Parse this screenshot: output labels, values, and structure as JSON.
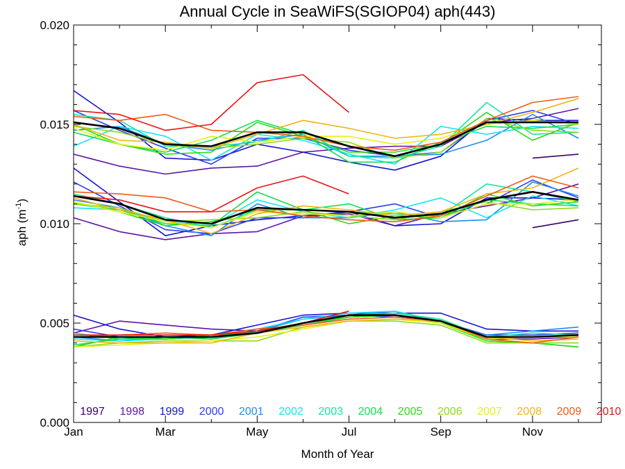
{
  "chart_data": {
    "type": "line",
    "title": "Annual Cycle in SeaWiFS(SGIOP04) aph(443)",
    "xlabel": "Month of Year",
    "ylabel": "aph (m",
    "ylabel_exponent": "-1",
    "ylabel_close": ")",
    "xlim": [
      1,
      12.5
    ],
    "ylim": [
      0.0,
      0.02
    ],
    "yticks": [
      0.0,
      0.005,
      0.01,
      0.015,
      0.02
    ],
    "ytick_labels": [
      "0.000",
      "0.005",
      "0.010",
      "0.015",
      "0.020"
    ],
    "xticks": [
      1,
      3,
      5,
      7,
      9,
      11
    ],
    "xtick_labels": [
      "Jan",
      "Mar",
      "May",
      "Jul",
      "Sep",
      "Nov"
    ],
    "grid": false,
    "legend": "bottom",
    "x": [
      1,
      2,
      3,
      4,
      5,
      6,
      7,
      8,
      9,
      10,
      11,
      12
    ],
    "series": [
      {
        "name": "1997",
        "color": "#3c0060",
        "upper": [
          null,
          null,
          null,
          null,
          null,
          null,
          null,
          null,
          null,
          null,
          0.0133,
          0.0135
        ],
        "middle": [
          null,
          null,
          null,
          null,
          null,
          null,
          null,
          null,
          null,
          null,
          0.0098,
          0.0102
        ],
        "lower": [
          null,
          null,
          null,
          null,
          null,
          null,
          null,
          null,
          null,
          null,
          null,
          null
        ]
      },
      {
        "name": "1998",
        "color": "#5a14a6",
        "upper": [
          0.0135,
          0.0129,
          0.0125,
          0.0128,
          0.0129,
          0.0136,
          0.0138,
          0.0139,
          0.0139,
          0.0151,
          0.0153,
          0.0158
        ],
        "middle": [
          0.0103,
          0.0096,
          0.0092,
          0.0095,
          0.0096,
          0.0104,
          0.0105,
          0.0099,
          0.0105,
          0.0109,
          0.0113,
          0.012
        ],
        "lower": [
          0.0045,
          0.0051,
          0.0049,
          0.0047,
          0.0046,
          0.0049,
          0.0053,
          0.0054,
          0.005,
          0.0042,
          0.0042,
          0.0043
        ]
      },
      {
        "name": "1999",
        "color": "#1414d0",
        "upper": [
          0.0167,
          0.0151,
          0.0133,
          0.0132,
          0.014,
          0.0136,
          0.0131,
          0.0127,
          0.0134,
          0.0153,
          0.0152,
          0.0152
        ],
        "middle": [
          0.0128,
          0.0111,
          0.0094,
          0.0099,
          0.0102,
          0.0104,
          0.0106,
          0.0099,
          0.01,
          0.0113,
          0.0113,
          0.0112
        ],
        "lower": [
          0.0054,
          0.0047,
          0.0043,
          0.0044,
          0.0049,
          0.0054,
          0.0055,
          0.0055,
          0.0055,
          0.0047,
          0.0046,
          0.0046
        ]
      },
      {
        "name": "2000",
        "color": "#2a3cf0",
        "upper": [
          0.0157,
          0.0147,
          0.0138,
          0.013,
          0.0143,
          0.0143,
          0.0137,
          0.0134,
          0.0136,
          0.0152,
          0.0157,
          0.015
        ],
        "middle": [
          0.0121,
          0.0109,
          0.0097,
          0.0095,
          0.0103,
          0.0103,
          0.0106,
          0.011,
          0.0103,
          0.011,
          0.0122,
          0.0113
        ],
        "lower": [
          0.0047,
          0.0043,
          0.0042,
          0.0043,
          0.0046,
          0.0053,
          0.0054,
          0.0053,
          0.0051,
          0.0044,
          0.0044,
          0.0045
        ]
      },
      {
        "name": "2001",
        "color": "#1e8cf0",
        "upper": [
          0.0147,
          0.0149,
          0.014,
          0.0137,
          0.0142,
          0.0145,
          0.0134,
          0.0134,
          0.0135,
          0.0142,
          0.0155,
          0.0143
        ],
        "middle": [
          0.0112,
          0.0108,
          0.0099,
          0.0094,
          0.011,
          0.0103,
          0.0103,
          0.0106,
          0.0101,
          0.0102,
          0.0121,
          0.0114
        ],
        "lower": [
          0.0043,
          0.0041,
          0.0043,
          0.0042,
          0.0046,
          0.0052,
          0.0054,
          0.0056,
          0.005,
          0.0044,
          0.0046,
          0.0048
        ]
      },
      {
        "name": "2002",
        "color": "#14e6f0",
        "upper": [
          0.0139,
          0.0149,
          0.0144,
          0.0132,
          0.0145,
          0.0142,
          0.0135,
          0.013,
          0.0149,
          0.0145,
          0.0149,
          0.0148
        ],
        "middle": [
          0.0108,
          0.0107,
          0.0101,
          0.0099,
          0.0112,
          0.0106,
          0.0103,
          0.0107,
          0.0113,
          0.0103,
          0.0114,
          0.0109
        ],
        "lower": [
          0.0042,
          0.0041,
          0.0042,
          0.0044,
          0.0047,
          0.0052,
          0.0055,
          0.0056,
          0.0051,
          0.0043,
          0.0043,
          0.0044
        ]
      },
      {
        "name": "2003",
        "color": "#14e6a0",
        "upper": [
          0.0155,
          0.0152,
          0.0139,
          0.0139,
          0.0141,
          0.0147,
          0.0134,
          0.0133,
          0.0139,
          0.0161,
          0.0145,
          0.0146
        ],
        "middle": [
          0.0115,
          0.011,
          0.0103,
          0.0098,
          0.0107,
          0.0107,
          0.0106,
          0.0105,
          0.0104,
          0.012,
          0.0116,
          0.0111
        ],
        "lower": [
          0.0045,
          0.0042,
          0.0042,
          0.0043,
          0.0046,
          0.005,
          0.0054,
          0.0055,
          0.0052,
          0.0043,
          0.0045,
          0.0044
        ]
      },
      {
        "name": "2004",
        "color": "#14dc50",
        "upper": [
          0.0146,
          0.014,
          0.0136,
          0.0142,
          0.0152,
          0.0145,
          0.0131,
          0.0131,
          0.0141,
          0.0149,
          0.0148,
          0.015
        ],
        "middle": [
          0.011,
          0.0107,
          0.01,
          0.0099,
          0.0116,
          0.0107,
          0.011,
          0.0102,
          0.0103,
          0.0112,
          0.011,
          0.0109
        ],
        "lower": [
          0.0039,
          0.0042,
          0.0043,
          0.0042,
          0.0045,
          0.0049,
          0.0053,
          0.0054,
          0.0051,
          0.0041,
          0.004,
          0.0038
        ]
      },
      {
        "name": "2005",
        "color": "#28dc14",
        "upper": [
          0.015,
          0.014,
          0.0135,
          0.0136,
          0.0151,
          0.0144,
          0.0136,
          0.0136,
          0.014,
          0.0156,
          0.0142,
          0.0151
        ],
        "middle": [
          0.0111,
          0.0106,
          0.0099,
          0.0101,
          0.0107,
          0.0107,
          0.01,
          0.0104,
          0.0103,
          0.0115,
          0.0109,
          0.0111
        ],
        "lower": [
          0.0038,
          0.0043,
          0.0042,
          0.0044,
          0.0045,
          0.005,
          0.0053,
          0.0054,
          0.005,
          0.0041,
          0.004,
          0.0038
        ]
      },
      {
        "name": "2006",
        "color": "#8cdc14",
        "upper": [
          0.0149,
          0.0146,
          0.014,
          0.0138,
          0.014,
          0.0143,
          0.0141,
          0.0133,
          0.0136,
          0.0153,
          0.0147,
          0.0146
        ],
        "middle": [
          0.011,
          0.0108,
          0.0101,
          0.0102,
          0.0103,
          0.0106,
          0.0104,
          0.0102,
          0.0106,
          0.0111,
          0.0107,
          0.0108
        ],
        "lower": [
          0.0038,
          0.004,
          0.0041,
          0.0041,
          0.0041,
          0.0048,
          0.0051,
          0.0051,
          0.0049,
          0.004,
          0.004,
          0.004
        ]
      },
      {
        "name": "2007",
        "color": "#e6f014",
        "upper": [
          0.0148,
          0.014,
          0.0137,
          0.0144,
          0.0141,
          0.0144,
          0.0144,
          0.014,
          0.0143,
          0.015,
          0.0152,
          0.015
        ],
        "middle": [
          0.0111,
          0.0106,
          0.0101,
          0.0098,
          0.0106,
          0.0105,
          0.0104,
          0.0106,
          0.0103,
          0.011,
          0.011,
          0.0112
        ],
        "lower": [
          0.0038,
          0.0039,
          0.004,
          0.0041,
          0.0043,
          0.0047,
          0.0051,
          0.0052,
          0.005,
          0.0042,
          0.0043,
          0.0043
        ]
      },
      {
        "name": "2008",
        "color": "#f0b414",
        "upper": [
          0.015,
          0.0142,
          0.0141,
          0.0138,
          0.0145,
          0.0152,
          0.0148,
          0.0143,
          0.0145,
          0.015,
          0.0156,
          0.0163
        ],
        "middle": [
          0.0113,
          0.0107,
          0.0102,
          0.0095,
          0.0105,
          0.0109,
          0.0107,
          0.0104,
          0.0106,
          0.0115,
          0.0118,
          0.0128
        ],
        "lower": [
          0.0041,
          0.004,
          0.004,
          0.004,
          0.0045,
          0.0048,
          0.0051,
          0.0052,
          0.0051,
          0.0043,
          0.0041,
          0.0042
        ]
      },
      {
        "name": "2009",
        "color": "#f05a14",
        "upper": [
          0.0154,
          0.0152,
          0.0155,
          0.0147,
          0.0146,
          0.0144,
          0.0139,
          0.0137,
          0.0141,
          0.0152,
          0.0161,
          0.0164
        ],
        "middle": [
          0.0116,
          0.0115,
          0.0113,
          0.0106,
          0.0107,
          0.0104,
          0.0102,
          0.0101,
          0.0104,
          0.0114,
          0.0124,
          0.0118
        ],
        "lower": [
          0.0043,
          0.0044,
          0.0045,
          0.0044,
          0.0047,
          0.0049,
          0.0052,
          0.0053,
          0.0051,
          0.0042,
          0.004,
          0.0043
        ]
      },
      {
        "name": "2010",
        "color": "#e61414",
        "upper": [
          0.0157,
          0.0155,
          0.0147,
          0.015,
          0.0171,
          0.0175,
          0.0156,
          null,
          null,
          null,
          null,
          null
        ],
        "middle": [
          0.0114,
          0.0112,
          0.0106,
          0.0106,
          0.0118,
          0.0124,
          0.0115,
          null,
          null,
          null,
          null,
          null
        ],
        "lower": [
          0.0044,
          0.0044,
          0.0044,
          0.0044,
          0.0046,
          0.005,
          0.0056,
          null,
          null,
          null,
          null,
          null
        ]
      },
      {
        "name": "",
        "color": "#000000",
        "upper": [
          0.0151,
          0.0148,
          0.014,
          0.0139,
          0.0146,
          0.0146,
          0.0139,
          0.0134,
          0.014,
          0.0151,
          0.0151,
          0.0151
        ],
        "middle": [
          0.0114,
          0.011,
          0.0102,
          0.01,
          0.0108,
          0.0107,
          0.0106,
          0.0103,
          0.0105,
          0.0112,
          0.0116,
          0.0112
        ],
        "lower": [
          0.0043,
          0.0043,
          0.0043,
          0.0043,
          0.0045,
          0.005,
          0.0054,
          0.0054,
          0.0051,
          0.0043,
          0.0043,
          0.0044
        ]
      }
    ]
  }
}
